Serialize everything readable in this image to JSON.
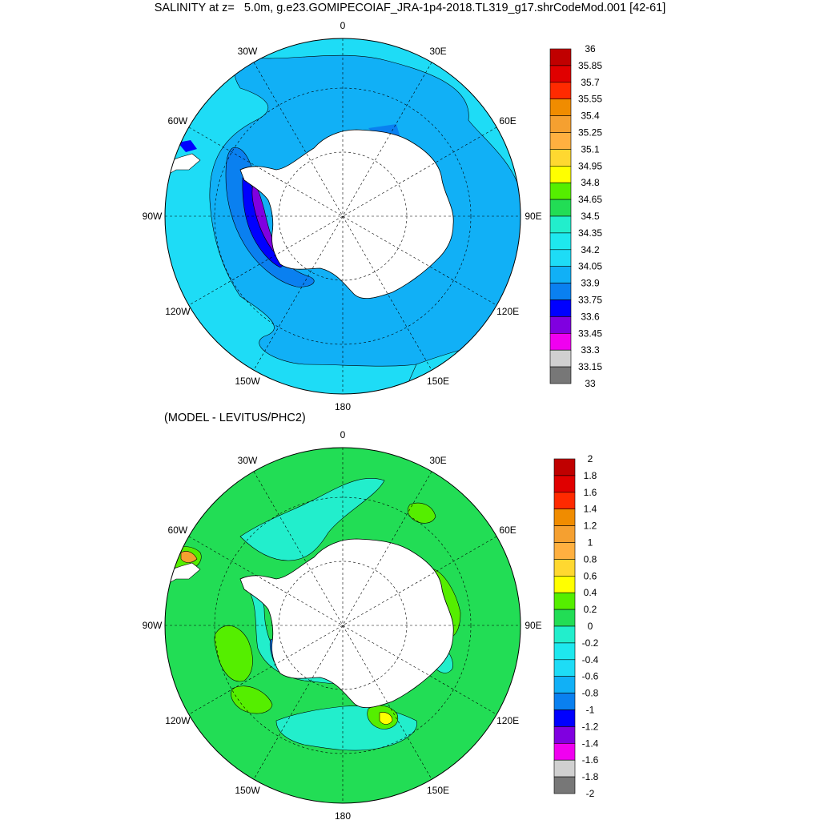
{
  "title": "SALINITY at z=   5.0m, g.e23.GOMIPECOIAF_JRA-1p4-2018.TL319_g17.shrCodeMod.001 [42-61]",
  "subtitle": "(MODEL - LEVITUS/PHC2)",
  "longitude_labels": [
    "0",
    "30E",
    "60E",
    "90E",
    "120E",
    "150E",
    "180",
    "150W",
    "120W",
    "90W",
    "60W",
    "30W"
  ],
  "top_colorbar": {
    "labels": [
      "36",
      "35.85",
      "35.7",
      "35.55",
      "35.4",
      "35.25",
      "35.1",
      "34.95",
      "34.8",
      "34.65",
      "34.5",
      "34.35",
      "34.2",
      "34.05",
      "33.9",
      "33.75",
      "33.6",
      "33.45",
      "33.3",
      "33.15",
      "33"
    ],
    "colors": [
      "#c00000",
      "#e00000",
      "#ff2a00",
      "#f08c00",
      "#f5a030",
      "#ffb040",
      "#ffd830",
      "#ffff00",
      "#55ee00",
      "#22dd55",
      "#22eecc",
      "#1ee8ee",
      "#1edcf6",
      "#11b0f6",
      "#0a80f0",
      "#0000ff",
      "#8000e0",
      "#f000f0",
      "#d0d0d0",
      "#777777"
    ]
  },
  "bottom_colorbar": {
    "labels": [
      "2",
      "1.8",
      "1.6",
      "1.4",
      "1.2",
      "1",
      "0.8",
      "0.6",
      "0.4",
      "0.2",
      "0",
      "-0.2",
      "-0.4",
      "-0.6",
      "-0.8",
      "-1",
      "-1.2",
      "-1.4",
      "-1.6",
      "-1.8",
      "-2"
    ],
    "colors": [
      "#c00000",
      "#e00000",
      "#ff2a00",
      "#f08c00",
      "#f5a030",
      "#ffb040",
      "#ffd830",
      "#ffff00",
      "#55ee00",
      "#22dd55",
      "#22eecc",
      "#1ee8ee",
      "#1edcf6",
      "#11b0f6",
      "#0a80f0",
      "#0000ff",
      "#8000e0",
      "#f000f0",
      "#d0d0d0",
      "#777777"
    ]
  },
  "colors": {
    "land": "#ffffff",
    "top_background": "#1edcf6",
    "top_band_33_9": "#11b0f6",
    "top_band_33_75": "#0a80f0",
    "top_band_33_6": "#0000ff",
    "top_band_33_45": "#8000e0",
    "bottom_background": "#22dd55",
    "bottom_neg": "#22eecc",
    "bottom_pos": "#55ee00"
  }
}
